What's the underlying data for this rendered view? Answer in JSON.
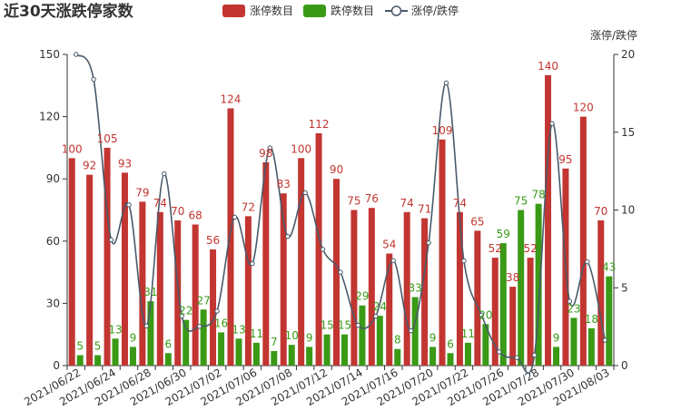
{
  "chart_data": {
    "type": "bar",
    "title": "近30天涨跌停家数",
    "legend": [
      "涨停数目",
      "跌停数目",
      "涨停/跌停"
    ],
    "legend_position": "top-center",
    "y2_axis_name": "涨停/跌停",
    "ylim": [
      0,
      150
    ],
    "y_ticks": [
      0,
      30,
      60,
      90,
      120,
      150
    ],
    "y2lim": [
      0,
      20
    ],
    "y2_ticks": [
      0,
      5,
      10,
      15,
      20
    ],
    "x_tick_labels": [
      "2021/06/22",
      "2021/06/24",
      "2021/06/28",
      "2021/06/30",
      "2021/07/02",
      "2021/07/06",
      "2021/07/08",
      "2021/07/12",
      "2021/07/14",
      "2021/07/16",
      "2021/07/20",
      "2021/07/22",
      "2021/07/26",
      "2021/07/28",
      "2021/07/30",
      "2021/08/03"
    ],
    "grid": false,
    "colors": {
      "up": "#c23531",
      "down": "#3a9a16",
      "ratio": "#4a5a6a"
    },
    "series": [
      {
        "name": "涨停数目",
        "type": "bar",
        "axis": "left",
        "values": [
          100,
          92,
          105,
          93,
          79,
          74,
          70,
          68,
          56,
          124,
          72,
          98,
          83,
          100,
          112,
          90,
          75,
          76,
          54,
          74,
          71,
          109,
          74,
          65,
          52,
          38,
          52,
          140,
          95,
          120,
          70
        ]
      },
      {
        "name": "跌停数目",
        "type": "bar",
        "axis": "left",
        "values": [
          5,
          5,
          13,
          9,
          31,
          6,
          22,
          27,
          16,
          13,
          11,
          7,
          10,
          9,
          15,
          15,
          29,
          24,
          8,
          33,
          9,
          6,
          11,
          20,
          59,
          75,
          78,
          9,
          23,
          18,
          43
        ]
      },
      {
        "name": "涨停/跌停",
        "type": "line",
        "axis": "right",
        "values": [
          20,
          18.4,
          8.08,
          10.33,
          2.55,
          12.33,
          3.18,
          2.52,
          3.5,
          9.54,
          6.55,
          14,
          8.3,
          11.11,
          7.47,
          6,
          2.59,
          3.17,
          6.75,
          2.24,
          7.89,
          18.17,
          6.73,
          3.25,
          0.88,
          0.51,
          0.67,
          15.56,
          4.13,
          6.67,
          1.63
        ]
      }
    ]
  }
}
